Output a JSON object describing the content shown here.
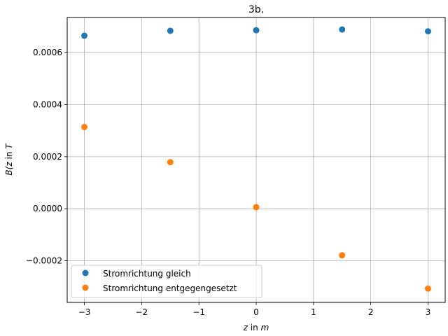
{
  "chart_data": {
    "type": "scatter",
    "title": "3b.",
    "xlabel_var": "z",
    "xlabel_rest": " in ",
    "xlabel_unit": "m",
    "ylabel_var": "B(z",
    "ylabel_rest": " in ",
    "ylabel_unit": "T",
    "xlim": [
      -3.3,
      3.3
    ],
    "ylim": [
      -0.00036,
      0.000735
    ],
    "xticks": [
      -3,
      -2,
      -1,
      0,
      1,
      2,
      3
    ],
    "xtick_labels": [
      "−3",
      "−2",
      "−1",
      "0",
      "1",
      "2",
      "3"
    ],
    "yticks": [
      -0.0002,
      0.0,
      0.0002,
      0.0004,
      0.0006
    ],
    "ytick_labels": [
      "−0.0002",
      "0.0000",
      "0.0002",
      "0.0004",
      "0.0006"
    ],
    "grid": true,
    "legend_position": "lower-left",
    "series": [
      {
        "name": "Stromrichtung gleich",
        "color": "#1f77b4",
        "x": [
          -3,
          -1.5,
          0,
          1.5,
          3
        ],
        "y": [
          0.000665,
          0.000684,
          0.000686,
          0.000689,
          0.000682
        ]
      },
      {
        "name": "Stromrichtung entgegengesetzt",
        "color": "#ff7f0e",
        "x": [
          -3,
          -1.5,
          0,
          1.5,
          3
        ],
        "y": [
          0.000314,
          0.000179,
          5.8e-06,
          -0.000179,
          -0.000307
        ]
      }
    ]
  }
}
